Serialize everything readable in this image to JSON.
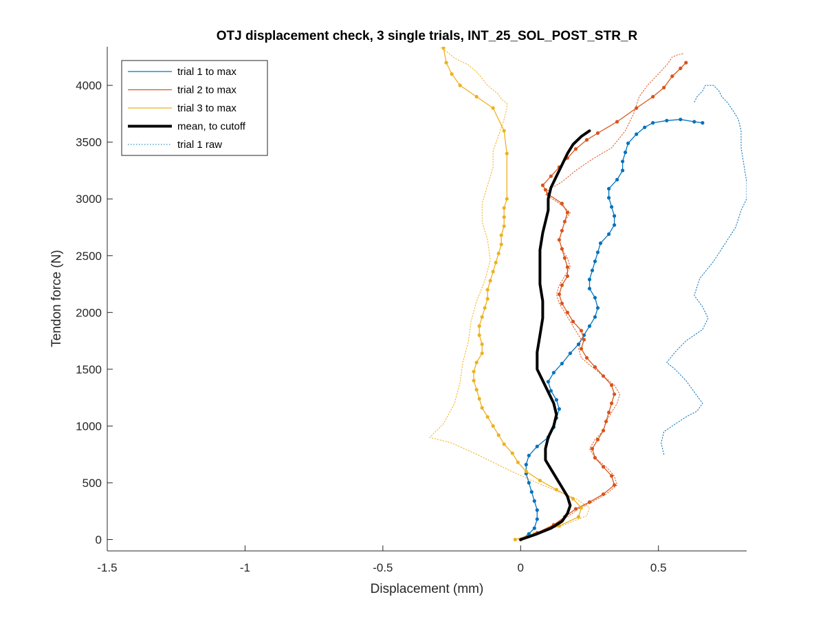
{
  "chart_data": {
    "type": "line",
    "title": "OTJ displacement check, 3 single trials, INT_25_SOL_POST_STR_R",
    "xlabel": "Displacement (mm)",
    "ylabel": "Tendon force (N)",
    "xlim": [
      -1.5,
      0.82
    ],
    "ylim": [
      -100,
      4340
    ],
    "xticks": [
      -1.5,
      -1,
      -0.5,
      0,
      0.5
    ],
    "xtick_labels": [
      "-1.5",
      "-1",
      "-0.5",
      "0",
      "0.5"
    ],
    "yticks": [
      0,
      500,
      1000,
      1500,
      2000,
      2500,
      3000,
      3500,
      4000
    ],
    "ytick_labels": [
      "0",
      "500",
      "1000",
      "1500",
      "2000",
      "2500",
      "3000",
      "3500",
      "4000"
    ],
    "grid": false,
    "legend_position": "top-left",
    "colors": {
      "trial1": "#0072BD",
      "trial2": "#D95319",
      "trial3": "#EDB120",
      "mean": "#000000"
    },
    "series": [
      {
        "name": "trial 1 to max",
        "style": "solid",
        "color": "#0072BD",
        "markers": true,
        "x": [
          0.0,
          0.03,
          0.05,
          0.06,
          0.06,
          0.05,
          0.04,
          0.03,
          0.02,
          0.02,
          0.03,
          0.06,
          0.1,
          0.12,
          0.13,
          0.14,
          0.13,
          0.11,
          0.1,
          0.12,
          0.15,
          0.18,
          0.21,
          0.23,
          0.25,
          0.27,
          0.28,
          0.27,
          0.25,
          0.25,
          0.26,
          0.27,
          0.28,
          0.29,
          0.32,
          0.34,
          0.34,
          0.33,
          0.32,
          0.32,
          0.35,
          0.37,
          0.37,
          0.38,
          0.39,
          0.42,
          0.45,
          0.48,
          0.53,
          0.58,
          0.63,
          0.66
        ],
        "y": [
          0,
          50,
          100,
          180,
          260,
          340,
          420,
          500,
          580,
          660,
          740,
          820,
          900,
          990,
          1070,
          1150,
          1230,
          1310,
          1390,
          1470,
          1550,
          1640,
          1720,
          1800,
          1880,
          1960,
          2040,
          2130,
          2210,
          2290,
          2370,
          2450,
          2530,
          2610,
          2690,
          2770,
          2850,
          2930,
          3010,
          3090,
          3170,
          3250,
          3330,
          3410,
          3490,
          3570,
          3630,
          3670,
          3690,
          3700,
          3680,
          3670
        ]
      },
      {
        "name": "trial 2 to max",
        "style": "solid",
        "color": "#D95319",
        "markers": true,
        "x": [
          0.0,
          0.06,
          0.12,
          0.16,
          0.2,
          0.25,
          0.3,
          0.34,
          0.33,
          0.3,
          0.27,
          0.26,
          0.28,
          0.3,
          0.31,
          0.32,
          0.33,
          0.34,
          0.33,
          0.3,
          0.27,
          0.24,
          0.22,
          0.23,
          0.22,
          0.19,
          0.17,
          0.15,
          0.14,
          0.15,
          0.17,
          0.17,
          0.16,
          0.15,
          0.14,
          0.15,
          0.16,
          0.17,
          0.15,
          0.1,
          0.09,
          0.08,
          0.11,
          0.14,
          0.17,
          0.2,
          0.24,
          0.28,
          0.35,
          0.42,
          0.48,
          0.52,
          0.55,
          0.58,
          0.6
        ],
        "y": [
          0,
          60,
          130,
          200,
          270,
          330,
          400,
          480,
          560,
          640,
          720,
          800,
          880,
          960,
          1040,
          1120,
          1200,
          1280,
          1360,
          1440,
          1520,
          1600,
          1680,
          1760,
          1840,
          1920,
          2000,
          2080,
          2160,
          2240,
          2320,
          2400,
          2480,
          2560,
          2640,
          2720,
          2800,
          2880,
          2960,
          3040,
          3080,
          3120,
          3200,
          3280,
          3360,
          3440,
          3520,
          3580,
          3680,
          3800,
          3900,
          3980,
          4080,
          4150,
          4200
        ]
      },
      {
        "name": "trial 3 to max",
        "style": "solid",
        "color": "#EDB120",
        "markers": true,
        "x": [
          -0.02,
          0.05,
          0.14,
          0.21,
          0.22,
          0.19,
          0.13,
          0.07,
          0.02,
          -0.01,
          -0.03,
          -0.06,
          -0.08,
          -0.1,
          -0.12,
          -0.14,
          -0.15,
          -0.16,
          -0.17,
          -0.17,
          -0.16,
          -0.14,
          -0.14,
          -0.15,
          -0.15,
          -0.14,
          -0.13,
          -0.12,
          -0.12,
          -0.11,
          -0.1,
          -0.09,
          -0.08,
          -0.07,
          -0.07,
          -0.06,
          -0.06,
          -0.06,
          -0.05,
          -0.05,
          -0.06,
          -0.1,
          -0.16,
          -0.22,
          -0.25,
          -0.27,
          -0.28
        ],
        "y": [
          0,
          50,
          120,
          200,
          280,
          360,
          440,
          520,
          600,
          680,
          760,
          840,
          920,
          1000,
          1080,
          1160,
          1240,
          1320,
          1400,
          1480,
          1560,
          1640,
          1720,
          1800,
          1880,
          1960,
          2040,
          2120,
          2200,
          2280,
          2360,
          2440,
          2520,
          2600,
          2680,
          2760,
          2840,
          2920,
          3000,
          3400,
          3600,
          3800,
          3900,
          4000,
          4100,
          4200,
          4330
        ]
      },
      {
        "name": "mean, to cutoff",
        "style": "solid-thick",
        "color": "#000000",
        "markers": false,
        "x": [
          0.0,
          0.06,
          0.11,
          0.15,
          0.17,
          0.18,
          0.17,
          0.15,
          0.13,
          0.11,
          0.09,
          0.09,
          0.1,
          0.12,
          0.13,
          0.12,
          0.1,
          0.08,
          0.06,
          0.06,
          0.07,
          0.08,
          0.08,
          0.07,
          0.07,
          0.07,
          0.08,
          0.09,
          0.1,
          0.1,
          0.11,
          0.13,
          0.15,
          0.17,
          0.19,
          0.22,
          0.25
        ],
        "y": [
          0,
          50,
          100,
          160,
          230,
          300,
          380,
          460,
          540,
          620,
          700,
          800,
          900,
          1000,
          1100,
          1200,
          1300,
          1400,
          1500,
          1650,
          1800,
          1950,
          2100,
          2250,
          2400,
          2550,
          2700,
          2800,
          2900,
          3000,
          3100,
          3200,
          3300,
          3400,
          3480,
          3550,
          3600
        ]
      },
      {
        "name": "trial 1 raw",
        "style": "dotted",
        "color": "#0072BD",
        "markers": false,
        "x": [
          0.52,
          0.51,
          0.52,
          0.55,
          0.6,
          0.64,
          0.66,
          0.63,
          0.6,
          0.56,
          0.53,
          0.56,
          0.6,
          0.66,
          0.68,
          0.66,
          0.63,
          0.65,
          0.7,
          0.74,
          0.78,
          0.8,
          0.82,
          0.82,
          0.81,
          0.8,
          0.8,
          0.79,
          0.77,
          0.75,
          0.73,
          0.72,
          0.7,
          0.67,
          0.66,
          0.64,
          0.63
        ],
        "y": [
          750,
          850,
          950,
          1000,
          1080,
          1130,
          1200,
          1300,
          1400,
          1500,
          1560,
          1650,
          1750,
          1850,
          1950,
          2050,
          2150,
          2300,
          2450,
          2600,
          2750,
          2900,
          3000,
          3150,
          3300,
          3450,
          3600,
          3700,
          3780,
          3850,
          3900,
          3950,
          4000,
          4000,
          3950,
          3900,
          3850
        ]
      },
      {
        "name": "trial 2 raw",
        "style": "dotted",
        "color": "#D95319",
        "markers": false,
        "legend": false,
        "x": [
          0.0,
          0.06,
          0.12,
          0.17,
          0.21,
          0.26,
          0.31,
          0.35,
          0.34,
          0.31,
          0.27,
          0.25,
          0.27,
          0.3,
          0.31,
          0.33,
          0.35,
          0.36,
          0.34,
          0.3,
          0.26,
          0.22,
          0.21,
          0.22,
          0.2,
          0.18,
          0.16,
          0.14,
          0.13,
          0.14,
          0.16,
          0.18,
          0.17,
          0.15,
          0.14,
          0.15,
          0.16,
          0.18,
          0.14,
          0.09,
          0.1,
          0.15,
          0.2,
          0.26,
          0.33,
          0.38,
          0.41,
          0.43,
          0.46,
          0.5,
          0.53,
          0.55,
          0.57,
          0.59
        ],
        "y": [
          0,
          60,
          130,
          200,
          270,
          330,
          400,
          480,
          560,
          640,
          720,
          800,
          880,
          960,
          1040,
          1120,
          1200,
          1280,
          1360,
          1440,
          1520,
          1600,
          1680,
          1760,
          1840,
          1920,
          2000,
          2080,
          2160,
          2240,
          2320,
          2400,
          2480,
          2560,
          2640,
          2720,
          2800,
          2880,
          2960,
          3040,
          3080,
          3150,
          3250,
          3350,
          3450,
          3600,
          3750,
          3900,
          4000,
          4100,
          4180,
          4250,
          4270,
          4280
        ]
      },
      {
        "name": "trial 3 raw",
        "style": "dotted",
        "color": "#EDB120",
        "markers": false,
        "legend": false,
        "x": [
          -0.02,
          0.06,
          0.16,
          0.24,
          0.25,
          0.2,
          0.12,
          0.04,
          -0.05,
          -0.15,
          -0.25,
          -0.33,
          -0.28,
          -0.24,
          -0.22,
          -0.21,
          -0.19,
          -0.18,
          -0.16,
          -0.13,
          -0.11,
          -0.12,
          -0.14,
          -0.14,
          -0.12,
          -0.1,
          -0.1,
          -0.08,
          -0.06,
          -0.05,
          -0.05,
          -0.07,
          -0.08,
          -0.1,
          -0.12,
          -0.14,
          -0.16,
          -0.19,
          -0.24,
          -0.27,
          -0.29
        ],
        "y": [
          0,
          60,
          130,
          210,
          280,
          360,
          440,
          520,
          620,
          740,
          850,
          900,
          1020,
          1200,
          1380,
          1560,
          1740,
          1920,
          2100,
          2280,
          2460,
          2640,
          2800,
          2960,
          3120,
          3280,
          3420,
          3560,
          3700,
          3800,
          3840,
          3880,
          3920,
          3960,
          4000,
          4060,
          4120,
          4180,
          4240,
          4300,
          4330
        ]
      }
    ]
  }
}
